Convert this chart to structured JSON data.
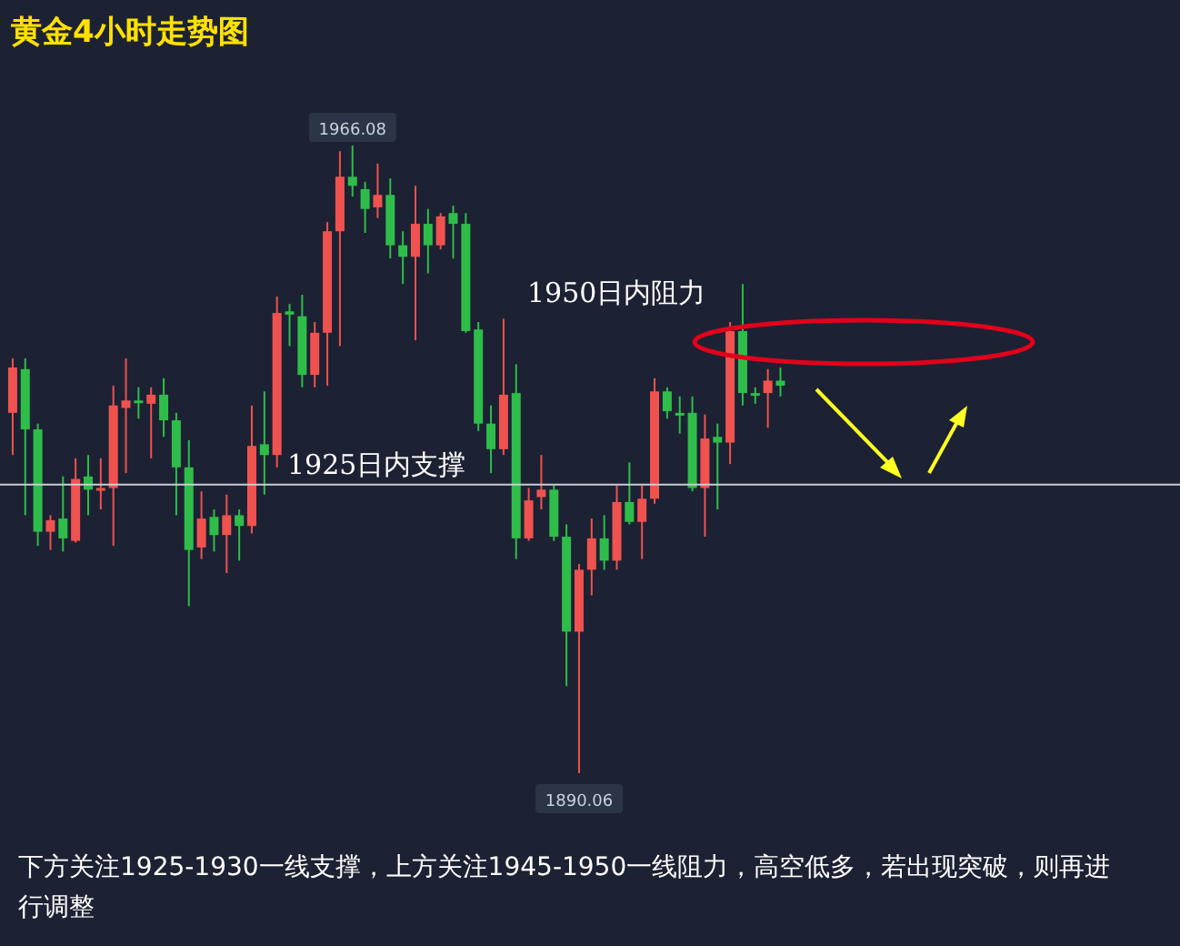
{
  "chart_data": {
    "type": "candlestick",
    "title": "黄金4小时走势图",
    "categories": [
      null,
      null,
      null,
      null,
      null,
      null,
      null,
      null,
      null,
      null,
      null,
      null,
      null,
      null,
      null,
      null,
      null,
      null,
      null,
      null,
      null,
      null,
      null,
      null,
      null,
      null,
      null,
      null,
      null,
      null,
      null,
      null,
      null,
      null,
      null,
      null,
      null,
      null,
      null,
      null,
      null,
      null,
      null,
      null,
      null,
      null,
      null,
      null,
      null,
      null,
      null,
      null,
      null,
      null,
      null,
      null,
      null,
      null,
      null,
      null,
      null,
      null
    ],
    "ohlc": [
      [
        1933.7,
        1940.3,
        1928.6,
        1939.2
      ],
      [
        1939.0,
        1940.3,
        1921.3,
        1931.7
      ],
      [
        1931.7,
        1932.4,
        1917.6,
        1919.3
      ],
      [
        1919.3,
        1921.3,
        1917.1,
        1920.7
      ],
      [
        1920.9,
        1926.0,
        1916.9,
        1918.5
      ],
      [
        1918.2,
        1928.2,
        1918.0,
        1925.7
      ],
      [
        1926.0,
        1928.6,
        1921.3,
        1924.4
      ],
      [
        1924.5,
        1928.2,
        1922.0,
        1924.6
      ],
      [
        1924.6,
        1937.0,
        1917.6,
        1934.6
      ],
      [
        1934.3,
        1940.3,
        1926.4,
        1935.2
      ],
      [
        1935.2,
        1936.8,
        1933.0,
        1935.0
      ],
      [
        1934.8,
        1936.8,
        1928.2,
        1935.9
      ],
      [
        1935.9,
        1937.9,
        1930.8,
        1932.8
      ],
      [
        1932.8,
        1933.7,
        1921.3,
        1927.1
      ],
      [
        1927.1,
        1930.4,
        1910.3,
        1917.1
      ],
      [
        1917.4,
        1924.2,
        1916.0,
        1920.9
      ],
      [
        1921.1,
        1922.0,
        1916.9,
        1918.9
      ],
      [
        1918.9,
        1923.8,
        1914.3,
        1921.3
      ],
      [
        1921.3,
        1922.0,
        1915.8,
        1920.0
      ],
      [
        1920.0,
        1934.6,
        1919.1,
        1929.7
      ],
      [
        1929.9,
        1936.3,
        1923.8,
        1928.6
      ],
      [
        1928.6,
        1947.8,
        1927.1,
        1945.8
      ],
      [
        1946.0,
        1946.9,
        1941.8,
        1945.6
      ],
      [
        1945.4,
        1948.0,
        1936.8,
        1938.3
      ],
      [
        1938.3,
        1944.7,
        1936.8,
        1943.4
      ],
      [
        1943.4,
        1956.8,
        1937.0,
        1955.7
      ],
      [
        1955.7,
        1965.4,
        1941.8,
        1962.3
      ],
      [
        1962.3,
        1966.08,
        1959.9,
        1961.2
      ],
      [
        1960.8,
        1961.7,
        1955.5,
        1958.4
      ],
      [
        1958.6,
        1963.9,
        1957.3,
        1960.1
      ],
      [
        1960.1,
        1962.1,
        1952.4,
        1954.0
      ],
      [
        1954.0,
        1955.7,
        1949.3,
        1952.6
      ],
      [
        1952.6,
        1961.2,
        1942.5,
        1956.6
      ],
      [
        1956.6,
        1958.4,
        1950.6,
        1954.0
      ],
      [
        1954.0,
        1957.9,
        1953.5,
        1957.5
      ],
      [
        1957.9,
        1958.8,
        1952.4,
        1956.6
      ],
      [
        1956.6,
        1957.9,
        1943.4,
        1943.6
      ],
      [
        1943.8,
        1944.7,
        1931.5,
        1932.4
      ],
      [
        1932.4,
        1934.6,
        1926.4,
        1929.3
      ],
      [
        1929.3,
        1945.1,
        1928.6,
        1935.9
      ],
      [
        1936.1,
        1939.6,
        1916.0,
        1918.5
      ],
      [
        1918.5,
        1924.6,
        1918.2,
        1923.1
      ],
      [
        1923.5,
        1928.6,
        1922.0,
        1924.4
      ],
      [
        1924.4,
        1924.9,
        1918.2,
        1918.7
      ],
      [
        1918.7,
        1920.2,
        1900.6,
        1907.2
      ],
      [
        1907.2,
        1915.4,
        1890.06,
        1914.7
      ],
      [
        1914.7,
        1920.9,
        1911.6,
        1918.5
      ],
      [
        1918.5,
        1921.3,
        1914.7,
        1915.8
      ],
      [
        1915.8,
        1924.9,
        1914.7,
        1922.9
      ],
      [
        1922.9,
        1927.7,
        1920.2,
        1920.5
      ],
      [
        1920.5,
        1924.9,
        1916.0,
        1923.3
      ],
      [
        1923.3,
        1937.9,
        1922.7,
        1936.3
      ],
      [
        1936.3,
        1936.8,
        1933.0,
        1933.9
      ],
      [
        1933.7,
        1935.7,
        1931.2,
        1933.5
      ],
      [
        1933.7,
        1935.7,
        1924.2,
        1924.6
      ],
      [
        1924.6,
        1933.5,
        1918.7,
        1930.6
      ],
      [
        1930.8,
        1932.4,
        1922.0,
        1930.1
      ],
      [
        1930.1,
        1944.7,
        1927.5,
        1943.6
      ],
      [
        1943.6,
        1949.3,
        1934.6,
        1936.1
      ],
      [
        1936.1,
        1936.8,
        1934.8,
        1935.9
      ],
      [
        1936.1,
        1939.0,
        1931.9,
        1937.6
      ],
      [
        1937.6,
        1939.2,
        1935.7,
        1937.0
      ]
    ],
    "ref_lines": [
      {
        "axis": "y",
        "value": 1925,
        "label": "1925日内支撑",
        "color": "#c8ccd4"
      }
    ],
    "annotations": [
      "1950日内阻力",
      "下方关注1925-1930一线支撑，上方关注1945-1950一线阻力，高空低多，若出现突破，则再进行调整",
      {
        "text": "1966.08",
        "y": 1966.08
      },
      {
        "text": "1890.06",
        "y": 1890.06
      }
    ],
    "tick_labels": false
  }
}
